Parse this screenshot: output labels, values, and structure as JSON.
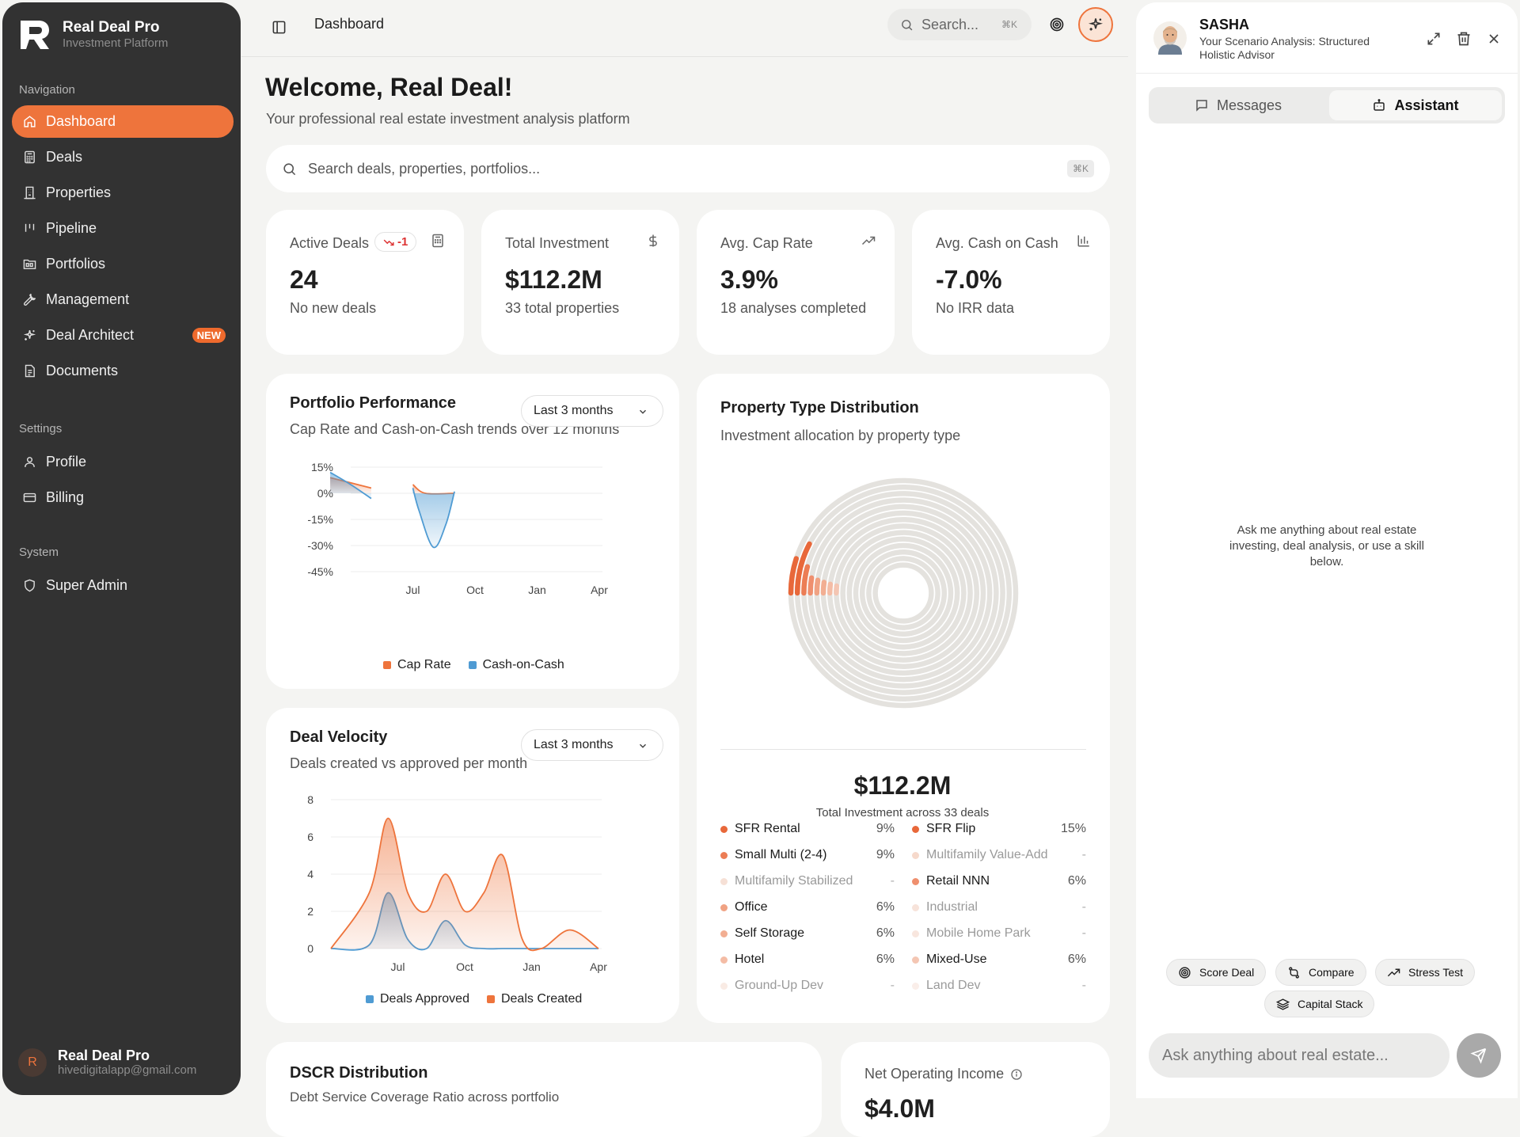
{
  "brand": {
    "name": "Real Deal Pro",
    "subtitle": "Investment Platform"
  },
  "sidebar": {
    "sections": {
      "navigation": "Navigation",
      "settings": "Settings",
      "system": "System"
    },
    "nav": [
      {
        "label": "Dashboard",
        "icon": "home-icon"
      },
      {
        "label": "Deals",
        "icon": "calculator-icon"
      },
      {
        "label": "Properties",
        "icon": "building-icon"
      },
      {
        "label": "Pipeline",
        "icon": "kanban-icon"
      },
      {
        "label": "Portfolios",
        "icon": "folder-icon"
      },
      {
        "label": "Management",
        "icon": "wrench-icon"
      },
      {
        "label": "Deal Architect",
        "icon": "sparkles-icon",
        "badge": "NEW"
      },
      {
        "label": "Documents",
        "icon": "document-icon"
      }
    ],
    "settings": [
      {
        "label": "Profile",
        "icon": "user-icon"
      },
      {
        "label": "Billing",
        "icon": "credit-card-icon"
      }
    ],
    "system": [
      {
        "label": "Super Admin",
        "icon": "shield-icon"
      }
    ],
    "user": {
      "initial": "R",
      "name": "Real Deal Pro",
      "email": "hivedigitalapp@gmail.com"
    }
  },
  "topbar": {
    "title": "Dashboard",
    "search_placeholder": "Search...",
    "search_shortcut": "⌘K"
  },
  "main": {
    "welcome": "Welcome, Real Deal!",
    "welcome_sub": "Your professional real estate investment analysis platform",
    "search_placeholder": "Search deals, properties, portfolios...",
    "search_shortcut": "⌘K"
  },
  "stats": [
    {
      "label": "Active Deals",
      "value": "24",
      "sub": "No new deals",
      "badge": "-1",
      "icon": "calculator-icon"
    },
    {
      "label": "Total Investment",
      "value": "$112.2M",
      "sub": "33 total properties",
      "icon": "dollar-icon"
    },
    {
      "label": "Avg. Cap Rate",
      "value": "3.9%",
      "sub": "18 analyses completed",
      "icon": "trending-up-icon"
    },
    {
      "label": "Avg. Cash on Cash",
      "value": "-7.0%",
      "sub": "No IRR data",
      "icon": "bar-chart-icon"
    }
  ],
  "portfolio_performance": {
    "title": "Portfolio Performance",
    "subtitle": "Cap Rate and Cash-on-Cash trends over 12 months",
    "range": "Last 3 months"
  },
  "deal_velocity": {
    "title": "Deal Velocity",
    "subtitle": "Deals created vs approved per month",
    "range": "Last 3 months"
  },
  "property_distribution": {
    "title": "Property Type Distribution",
    "subtitle": "Investment allocation by property type",
    "total": "$112.2M",
    "total_sub": "Total Investment across 33 deals"
  },
  "dscr": {
    "title": "DSCR Distribution",
    "subtitle": "Debt Service Coverage Ratio across portfolio"
  },
  "noi": {
    "title": "Net Operating Income",
    "value": "$4.0M"
  },
  "chart_data": [
    {
      "type": "area",
      "title": "Portfolio Performance",
      "x_ticks": [
        "Jul",
        "Oct",
        "Jan",
        "Apr"
      ],
      "y_ticks": [
        "15%",
        "0%",
        "-15%",
        "-30%",
        "-45%"
      ],
      "ylim": [
        -45,
        15
      ],
      "x_range": [
        0,
        4
      ],
      "series": [
        {
          "name": "Cap Rate",
          "color": "#ee743c",
          "segments": [
            [
              [
                -0.33,
                9
              ],
              [
                0,
                6
              ],
              [
                0.33,
                3
              ]
            ],
            [
              [
                1,
                5
              ],
              [
                1.2,
                0
              ],
              [
                1.67,
                0
              ]
            ]
          ]
        },
        {
          "name": "Cash-on-Cash",
          "color": "#4f9bd3",
          "segments": [
            [
              [
                -0.33,
                12
              ],
              [
                0,
                5
              ],
              [
                0.33,
                -3
              ]
            ],
            [
              [
                1,
                3
              ],
              [
                1.1,
                -10
              ],
              [
                1.33,
                -31
              ],
              [
                1.53,
                -18
              ],
              [
                1.67,
                1
              ]
            ]
          ]
        }
      ],
      "legend": "bottom"
    },
    {
      "type": "area",
      "title": "Deal Velocity",
      "x_ticks": [
        "Jul",
        "Oct",
        "Jan",
        "Apr"
      ],
      "y_ticks": [
        "8",
        "6",
        "4",
        "2",
        "0"
      ],
      "ylim": [
        0,
        8
      ],
      "x_range": [
        -0.67,
        4
      ],
      "series": [
        {
          "name": "Deals Approved",
          "color": "#4f9bd3",
          "values": [
            [
              -0.67,
              0
            ],
            [
              0,
              0.2
            ],
            [
              0.33,
              3
            ],
            [
              0.67,
              0.5
            ],
            [
              1,
              0
            ],
            [
              1.33,
              1.5
            ],
            [
              1.67,
              0.2
            ],
            [
              2,
              0
            ],
            [
              2.33,
              0
            ],
            [
              2.67,
              0
            ],
            [
              3,
              0
            ],
            [
              3.5,
              0
            ],
            [
              4,
              0
            ]
          ]
        },
        {
          "name": "Deals Created",
          "color": "#ee743c",
          "values": [
            [
              -0.67,
              0
            ],
            [
              0,
              3
            ],
            [
              0.33,
              7
            ],
            [
              0.67,
              3
            ],
            [
              1,
              2
            ],
            [
              1.33,
              4
            ],
            [
              1.67,
              2
            ],
            [
              2,
              3
            ],
            [
              2.33,
              5
            ],
            [
              2.67,
              0.5
            ],
            [
              3,
              0
            ],
            [
              3.5,
              1
            ],
            [
              4,
              0
            ]
          ]
        }
      ],
      "legend": "bottom"
    },
    {
      "type": "pie",
      "title": "Property Type Distribution",
      "series": [
        {
          "name": "SFR Rental",
          "value": 9,
          "display": "9%",
          "color": "#e8683a"
        },
        {
          "name": "SFR Flip",
          "value": 15,
          "display": "15%",
          "color": "#e8683a"
        },
        {
          "name": "Small Multi (2-4)",
          "value": 9,
          "display": "9%",
          "color": "#ec7d55"
        },
        {
          "name": "Multifamily Value-Add",
          "value": 0,
          "display": "-",
          "color": "#f6d9cb"
        },
        {
          "name": "Multifamily Stabilized",
          "value": 0,
          "display": "-",
          "color": "#f6e0d6"
        },
        {
          "name": "Retail NNN",
          "value": 6,
          "display": "6%",
          "color": "#ef8f6e"
        },
        {
          "name": "Office",
          "value": 6,
          "display": "6%",
          "color": "#f0a283"
        },
        {
          "name": "Industrial",
          "value": 0,
          "display": "-",
          "color": "#f7e3da"
        },
        {
          "name": "Self Storage",
          "value": 6,
          "display": "6%",
          "color": "#f2ae92"
        },
        {
          "name": "Mobile Home Park",
          "value": 0,
          "display": "-",
          "color": "#f8e6de"
        },
        {
          "name": "Hotel",
          "value": 6,
          "display": "6%",
          "color": "#f4bca5"
        },
        {
          "name": "Mixed-Use",
          "value": 6,
          "display": "6%",
          "color": "#f4c6b3"
        },
        {
          "name": "Ground-Up Dev",
          "value": 0,
          "display": "-",
          "color": "#f9ebe4"
        },
        {
          "name": "Land Dev",
          "value": 0,
          "display": "-",
          "color": "#faeee9"
        }
      ]
    }
  ],
  "assistant": {
    "name": "SASHA",
    "description": "Your Scenario Analysis: Structured Holistic Advisor",
    "tabs": [
      "Messages",
      "Assistant"
    ],
    "active_tab": "Assistant",
    "empty_text": "Ask me anything about real estate investing, deal analysis, or use a skill below.",
    "skills": [
      "Score Deal",
      "Compare",
      "Stress Test",
      "Capital Stack"
    ],
    "input_placeholder": "Ask anything about real estate..."
  }
}
